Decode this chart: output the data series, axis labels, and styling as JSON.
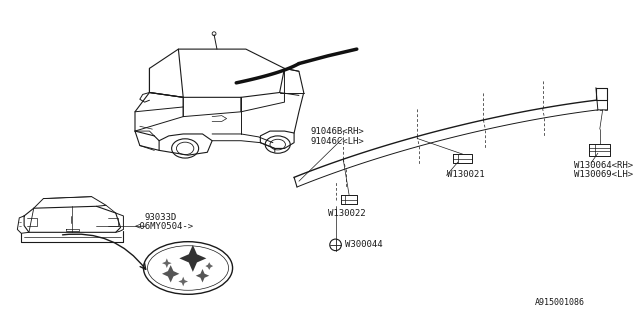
{
  "bg_color": "#ffffff",
  "line_color": "#1a1a1a",
  "diagram_id": "A915001086",
  "labels": {
    "part1a": "91046B<RH>",
    "part1b": "91046C<LH>",
    "part2": "W130022",
    "part3": "W130021",
    "part4a": "W130064<RH>",
    "part4b": "W130069<LH>",
    "part5a": "93033D",
    "part5b": "<06MY0504->",
    "part6": "W300044",
    "diag_id": "A915001086"
  }
}
